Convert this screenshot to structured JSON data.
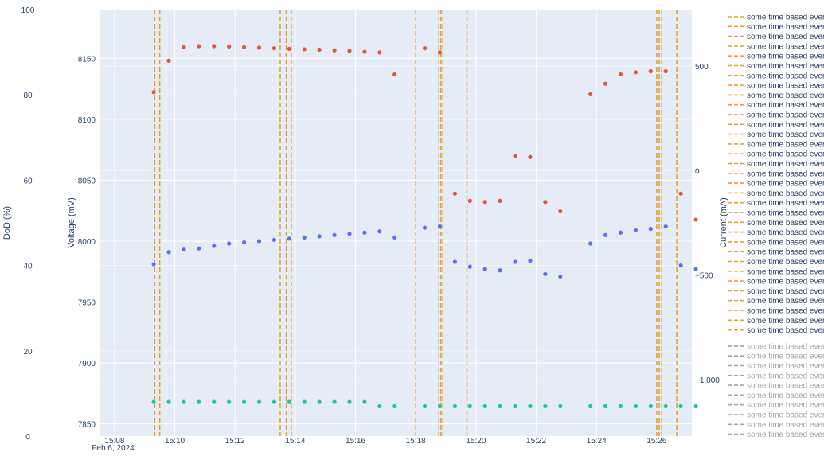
{
  "chart_data": {
    "type": "scatter",
    "x_time_range": [
      "15:07:30",
      "15:27:10"
    ],
    "x_date_label": "Feb 6, 2024",
    "x_ticks": [
      "15:08",
      "15:10",
      "15:12",
      "15:14",
      "15:16",
      "15:18",
      "15:20",
      "15:22",
      "15:24",
      "15:26"
    ],
    "yaxes": {
      "dod": {
        "title": "DoD (%)",
        "range": [
          0,
          100
        ],
        "ticks": [
          0,
          20,
          40,
          60,
          80,
          100
        ]
      },
      "voltage": {
        "title": "Voltage (mV)",
        "range": [
          7840,
          8190
        ],
        "ticks": [
          7850,
          7900,
          7950,
          8000,
          8050,
          8100,
          8150
        ]
      },
      "current": {
        "title": "Current (mA)",
        "range": [
          -1270,
          770
        ],
        "ticks": [
          -1000,
          -500,
          0,
          500
        ]
      }
    },
    "grid": true,
    "legend_position": "right",
    "colors": {
      "voltage": "#5b6ff0",
      "current": "#e5553b",
      "dod": "#1fc797",
      "event_line": "#e0a030",
      "legend_inactive": "#a4a4a4",
      "plot_bg": "#e5ecf6",
      "grid": "#ffffff"
    },
    "voltage_series": {
      "x": [
        "15:09:18",
        "15:09:48",
        "15:10:18",
        "15:10:48",
        "15:11:18",
        "15:11:48",
        "15:12:18",
        "15:12:48",
        "15:13:18",
        "15:13:48",
        "15:14:18",
        "15:14:48",
        "15:15:18",
        "15:15:48",
        "15:16:18",
        "15:16:48",
        "15:17:18",
        "15:18:18",
        "15:18:48",
        "15:19:18",
        "15:19:48",
        "15:20:18",
        "15:20:48",
        "15:21:18",
        "15:21:48",
        "15:22:18",
        "15:22:48",
        "15:23:48",
        "15:24:18",
        "15:24:48",
        "15:25:18",
        "15:25:48",
        "15:26:18",
        "15:26:48",
        "15:27:18"
      ],
      "y": [
        7981,
        7991,
        7993,
        7994,
        7996,
        7998,
        7999,
        8000,
        8001,
        8002,
        8003,
        8004,
        8005,
        8006,
        8007,
        8008,
        8003,
        8011,
        8012,
        7983,
        7979,
        7977,
        7976,
        7983,
        7984,
        7973,
        7971,
        7998,
        8005,
        8007,
        8009,
        8010,
        8012,
        7980,
        7977
      ]
    },
    "current_series": {
      "x": [
        "15:09:18",
        "15:09:48",
        "15:10:18",
        "15:10:48",
        "15:11:18",
        "15:11:48",
        "15:12:18",
        "15:12:48",
        "15:13:18",
        "15:13:48",
        "15:14:18",
        "15:14:48",
        "15:15:18",
        "15:15:48",
        "15:16:18",
        "15:16:48",
        "15:17:18",
        "15:18:18",
        "15:18:48",
        "15:19:18",
        "15:19:48",
        "15:20:18",
        "15:20:48",
        "15:21:18",
        "15:21:48",
        "15:22:18",
        "15:22:48",
        "15:23:48",
        "15:24:18",
        "15:24:48",
        "15:25:18",
        "15:25:48",
        "15:26:18",
        "15:26:48",
        "15:27:18"
      ],
      "y": [
        375,
        525,
        590,
        595,
        595,
        593,
        590,
        588,
        585,
        582,
        580,
        578,
        575,
        572,
        568,
        565,
        460,
        585,
        565,
        -110,
        -145,
        -150,
        -145,
        70,
        65,
        -150,
        -195,
        365,
        415,
        460,
        470,
        475,
        475,
        -110,
        -235
      ]
    },
    "dod_series": {
      "x": [
        "15:09:18",
        "15:09:48",
        "15:10:18",
        "15:10:48",
        "15:11:18",
        "15:11:48",
        "15:12:18",
        "15:12:48",
        "15:13:18",
        "15:13:48",
        "15:14:18",
        "15:14:48",
        "15:15:18",
        "15:15:48",
        "15:16:18",
        "15:16:48",
        "15:17:18",
        "15:18:18",
        "15:18:48",
        "15:19:18",
        "15:19:48",
        "15:20:18",
        "15:20:48",
        "15:21:18",
        "15:21:48",
        "15:22:18",
        "15:22:48",
        "15:23:48",
        "15:24:18",
        "15:24:48",
        "15:25:18",
        "15:25:48",
        "15:26:18",
        "15:26:48",
        "15:27:18"
      ],
      "y": [
        8,
        8,
        8,
        8,
        8,
        8,
        8,
        8,
        8,
        8,
        8,
        8,
        8,
        8,
        8,
        7,
        7,
        7,
        7,
        7,
        7,
        7,
        7,
        7,
        7,
        7,
        7,
        7,
        7,
        7,
        7,
        7,
        7,
        7,
        7
      ]
    },
    "event_times": [
      "15:09:20",
      "15:09:30",
      "15:13:30",
      "15:13:42",
      "15:13:52",
      "15:18:00",
      "15:18:46",
      "15:18:50",
      "15:18:54",
      "15:19:42",
      "15:26:00",
      "15:26:05",
      "15:26:10",
      "15:26:40"
    ],
    "legend": {
      "active_label": "some time based event",
      "active_count": 33,
      "inactive_label": "some time based event",
      "inactive_count": 10
    }
  }
}
